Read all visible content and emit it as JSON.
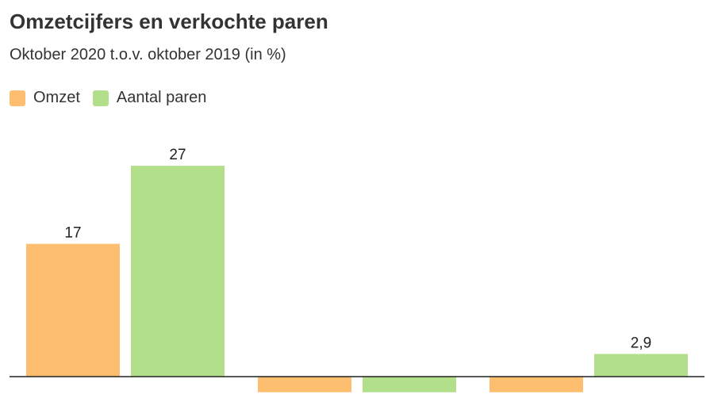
{
  "chart_data": {
    "type": "bar",
    "title": "Omzetcijfers en verkochte paren",
    "subtitle": "Oktober 2020 t.o.v. oktober 2019 (in %)",
    "categories": [
      "",
      "",
      ""
    ],
    "series": [
      {
        "name": "Omzet",
        "color": "#fdbf6f",
        "values": [
          17,
          -2,
          -2
        ],
        "labels": [
          "17",
          "",
          ""
        ]
      },
      {
        "name": "Aantal paren",
        "color": "#b2df8a",
        "values": [
          27,
          -2,
          2.9
        ],
        "labels": [
          "27",
          "",
          "2,9"
        ]
      }
    ],
    "ylim": [
      -2,
      30
    ],
    "legend_position": "top-left",
    "grid": false
  }
}
